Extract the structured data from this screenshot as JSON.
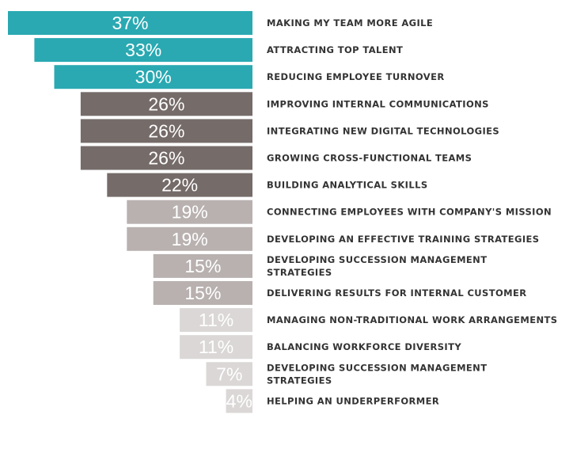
{
  "chart_data": {
    "type": "bar",
    "orientation": "horizontal",
    "title": "",
    "xlabel": "",
    "ylabel": "",
    "xlim": [
      0,
      37
    ],
    "grid": false,
    "legend": "none",
    "categories": [
      [
        "MAKING MY TEAM MORE AGILE"
      ],
      [
        "ATTRACTING TOP TALENT"
      ],
      [
        "REDUCING EMPLOYEE TURNOVER"
      ],
      [
        "IMPROVING INTERNAL COMMUNICATIONS"
      ],
      [
        "INTEGRATING NEW DIGITAL TECHNOLOGIES"
      ],
      [
        "GROWING CROSS-FUNCTIONAL TEAMS"
      ],
      [
        "BUILDING ANALYTICAL SKILLS"
      ],
      [
        "CONNECTING EMPLOYEES WITH COMPANY'S MISSION"
      ],
      [
        "DEVELOPING AN EFFECTIVE TRAINING STRATEGIES"
      ],
      [
        "DEVELOPING SUCCESSION MANAGEMENT",
        "STRATEGIES"
      ],
      [
        "DELIVERING RESULTS FOR INTERNAL CUSTOMER"
      ],
      [
        "MANAGING NON-TRADITIONAL WORK ARRANGEMENTS"
      ],
      [
        "BALANCING WORKFORCE DIVERSITY"
      ],
      [
        "DEVELOPING SUCCESSION MANAGEMENT",
        "STRATEGIES"
      ],
      [
        "HELPING AN UNDERPERFORMER"
      ]
    ],
    "values": [
      37,
      33,
      30,
      26,
      26,
      26,
      22,
      19,
      19,
      15,
      15,
      11,
      11,
      7,
      4
    ],
    "value_labels": [
      "37%",
      "33%",
      "30%",
      "26%",
      "26%",
      "26%",
      "22%",
      "19%",
      "19%",
      "15%",
      "15%",
      "11%",
      "11%",
      "7%",
      "4%"
    ],
    "colors": [
      "#2aa9b2",
      "#2aa9b2",
      "#2aa9b2",
      "#756b69",
      "#756b69",
      "#756b69",
      "#756b69",
      "#b8b1b0",
      "#b8b1b0",
      "#b8b1b0",
      "#b8b1b0",
      "#dad7d6",
      "#dad7d6",
      "#dad7d6",
      "#dad7d6"
    ]
  }
}
